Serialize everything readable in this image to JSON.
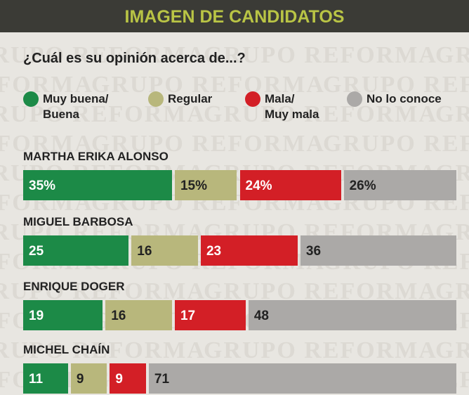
{
  "chart_data": {
    "type": "bar",
    "orientation": "horizontal",
    "stacked": true,
    "title": "IMAGEN DE CANDIDATOS",
    "subtitle": "¿Cuál es su opinión acerca de...?",
    "watermark": "GRUPO REFORMA",
    "categories": [
      "MARTHA ERIKA ALONSO",
      "MIGUEL BARBOSA",
      "ENRIQUE DOGER",
      "MICHEL CHAÍN"
    ],
    "xlim": [
      0,
      100
    ],
    "series": [
      {
        "name": "Muy buena/\nBuena",
        "color": "#1c8a47",
        "values": [
          35,
          25,
          19,
          11
        ],
        "value_labels": [
          "35%",
          "25",
          "19",
          "11"
        ]
      },
      {
        "name": "Regular",
        "color": "#b8b77c",
        "values": [
          15,
          16,
          16,
          9
        ],
        "value_labels": [
          "15%",
          "16",
          "16",
          "9"
        ]
      },
      {
        "name": "Mala/\nMuy mala",
        "color": "#d31f26",
        "values": [
          24,
          23,
          17,
          9
        ],
        "value_labels": [
          "24%",
          "23",
          "17",
          "9"
        ]
      },
      {
        "name": "No lo conoce",
        "color": "#aba9a7",
        "values": [
          26,
          36,
          48,
          71
        ],
        "value_labels": [
          "26%",
          "36",
          "48",
          "71"
        ]
      }
    ]
  }
}
